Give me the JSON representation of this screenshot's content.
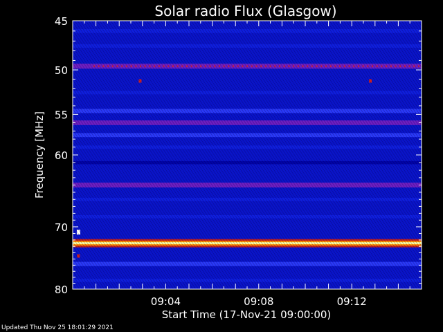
{
  "chart_data": {
    "type": "heatmap",
    "title": "Solar radio Flux (Glasgow)",
    "xlabel": "Start Time (17-Nov-21 09:00:00)",
    "ylabel": "Frequency [MHz]",
    "x_range_minutes": [
      0,
      15
    ],
    "x_ticks": [
      {
        "minute": 4,
        "label": "09:04"
      },
      {
        "minute": 8,
        "label": "09:08"
      },
      {
        "minute": 12,
        "label": "09:12"
      }
    ],
    "y_range": [
      45,
      80
    ],
    "y_ticks": [
      45,
      50,
      55,
      60,
      70,
      80
    ],
    "y_tick_labels": [
      "45",
      "50",
      "55",
      "60",
      "70",
      "80"
    ],
    "y_scale": "log",
    "colormap": [
      "#000050",
      "#0000a0",
      "#1020e0",
      "#3040ff",
      "#8020c0",
      "#c02020",
      "#ff8000",
      "#ffff80"
    ],
    "bands": [
      {
        "freq": 46.0,
        "intensity": 0.25
      },
      {
        "freq": 47.5,
        "intensity": 0.2
      },
      {
        "freq": 49.6,
        "intensity": 0.55
      },
      {
        "freq": 52.5,
        "intensity": 0.15
      },
      {
        "freq": 54.6,
        "intensity": 0.35
      },
      {
        "freq": 56.0,
        "intensity": 0.45
      },
      {
        "freq": 57.5,
        "intensity": 0.3
      },
      {
        "freq": 59.0,
        "intensity": 0.1
      },
      {
        "freq": 61.0,
        "intensity": 0.08
      },
      {
        "freq": 64.0,
        "intensity": 0.5
      },
      {
        "freq": 66.0,
        "intensity": 0.15
      },
      {
        "freq": 68.5,
        "intensity": 0.12
      },
      {
        "freq": 72.5,
        "intensity": 1.0
      },
      {
        "freq": 75.8,
        "intensity": 0.35
      },
      {
        "freq": 78.5,
        "intensity": 0.1
      }
    ],
    "spots": [
      {
        "minute": 2.9,
        "freq": 51.2,
        "intensity": 0.7
      },
      {
        "minute": 12.8,
        "freq": 51.2,
        "intensity": 0.7
      },
      {
        "minute": 0.25,
        "freq": 70.8,
        "intensity": 1.0
      },
      {
        "minute": 0.25,
        "freq": 74.5,
        "intensity": 0.6
      }
    ],
    "grid": false
  },
  "footer": {
    "updated": "Updated Thu Nov 25 18:01:29 2021"
  }
}
